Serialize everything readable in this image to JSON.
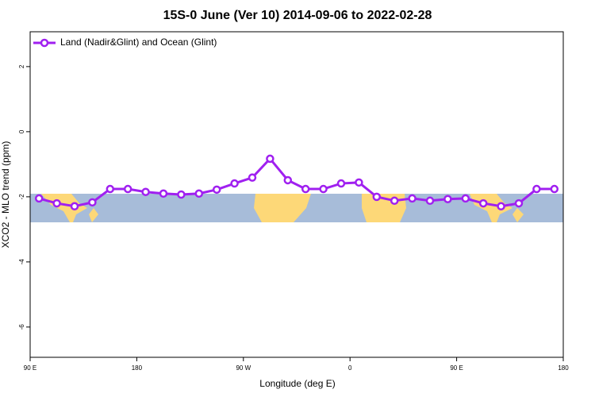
{
  "chart_data": {
    "type": "line",
    "title": "15S-0 June (Ver 10)   2014-09-06 to 2022-02-28",
    "x_label": "Longitude (deg E)",
    "y_label": "XCO2 - MLO trend (ppm)",
    "x": [
      97.5,
      112.5,
      127.5,
      142.5,
      157.5,
      172.5,
      187.5,
      202.5,
      217.5,
      232.5,
      247.5,
      262.5,
      277.5,
      292.5,
      307.5,
      322.5,
      337.5,
      352.5,
      367.5,
      382.5,
      397.5,
      412.5,
      427.5,
      442.5,
      457.5,
      472.5,
      487.5,
      502.5,
      517.5,
      532.5
    ],
    "series": [
      {
        "name": "Land (Nadir&Glint) and Ocean (Glint)",
        "color": "#a020f0",
        "values": [
          -2.05,
          -2.2,
          -2.29,
          -2.17,
          -1.76,
          -1.76,
          -1.85,
          -1.9,
          -1.93,
          -1.9,
          -1.78,
          -1.59,
          -1.41,
          -0.83,
          -1.49,
          -1.76,
          -1.76,
          -1.59,
          -1.56,
          -2.0,
          -2.12,
          -2.05,
          -2.12,
          -2.07,
          -2.05,
          -2.2,
          -2.29,
          -2.2,
          -1.76,
          -1.76
        ]
      }
    ],
    "xlim": [
      90,
      540
    ],
    "xticks": [
      {
        "value": 90,
        "label": "90 E"
      },
      {
        "value": 180,
        "label": "180"
      },
      {
        "value": 270,
        "label": "90 W"
      },
      {
        "value": 360,
        "label": "0"
      },
      {
        "value": 450,
        "label": "90 E"
      },
      {
        "value": 540,
        "label": "180"
      }
    ],
    "ylim": [
      -6.93,
      3.07
    ],
    "yticks": [
      -6,
      -4,
      -2,
      0,
      2
    ],
    "legend": "top-left"
  }
}
